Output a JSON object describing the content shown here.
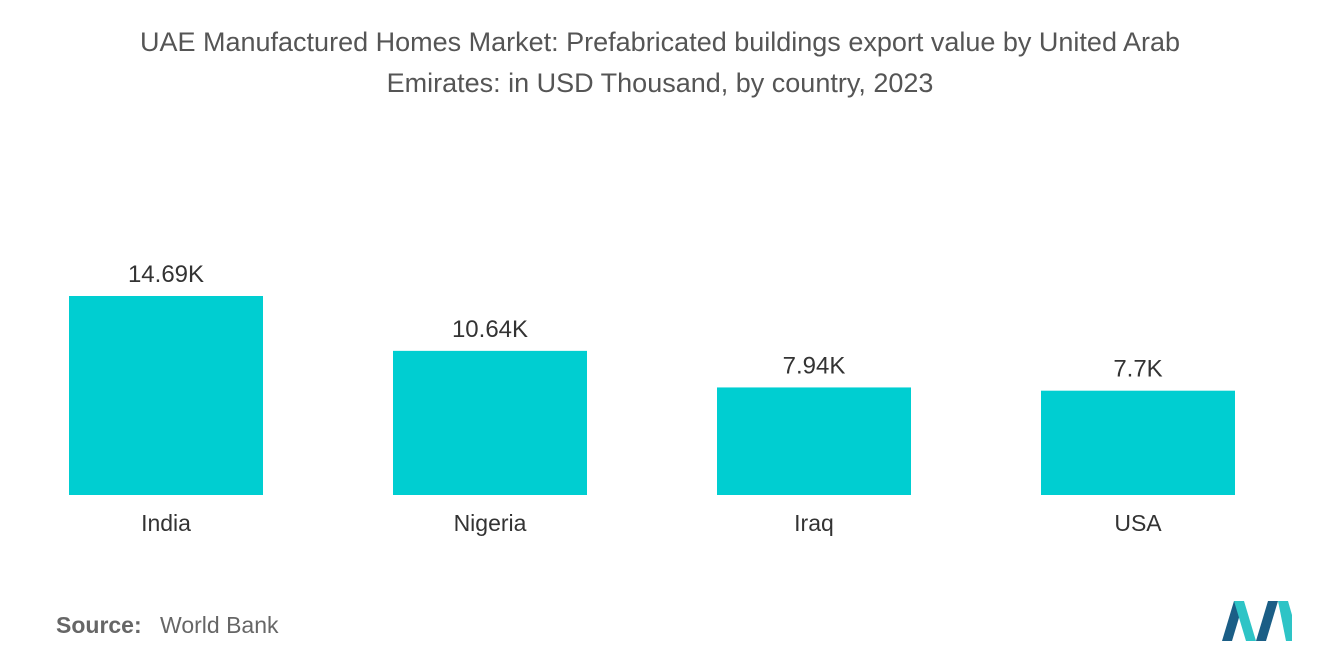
{
  "header": {
    "title_line1": "UAE Manufactured Homes Market: Prefabricated buildings export value by United Arab",
    "title_line2": "Emirates: in USD Thousand, by country, 2023"
  },
  "chart_data": {
    "type": "bar",
    "title": "UAE Manufactured Homes Market: Prefabricated buildings export value by United Arab Emirates: in USD Thousand, by country, 2023",
    "categories": [
      "India",
      "Nigeria",
      "Iraq",
      "USA"
    ],
    "values": [
      14.69,
      10.64,
      7.94,
      7.7
    ],
    "value_labels": [
      "14.69K",
      "10.64K",
      "7.94K",
      "7.7K"
    ],
    "xlabel": "",
    "ylabel": "",
    "grid": false,
    "legend": "none",
    "bar_color": "#00CED1"
  },
  "footer": {
    "source_key": "Source:",
    "source_value": "World Bank"
  },
  "colors": {
    "bar": "#00CED1",
    "logo_dark": "#1B5E86",
    "logo_light": "#2EC4C6"
  }
}
